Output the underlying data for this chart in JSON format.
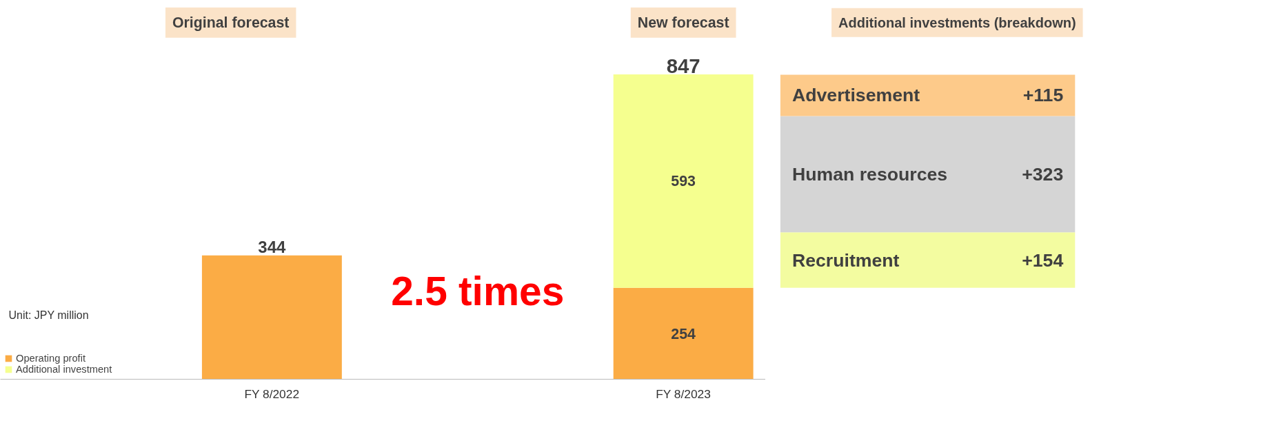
{
  "chart_data": [
    {
      "type": "bar",
      "stacked": true,
      "categories": [
        "FY 8/2022",
        "FY 8/2023"
      ],
      "series": [
        {
          "name": "Operating profit",
          "color": "#fbac45",
          "values": [
            344,
            254
          ]
        },
        {
          "name": "Additional investment",
          "color": "#f5ff8f",
          "values": [
            null,
            593
          ]
        }
      ],
      "data_labels": true,
      "totals": [
        null,
        "847"
      ],
      "legend": "bottom left",
      "annotations": [
        "Original forecast",
        "New forecast",
        "Unit: JPY million",
        "2.5 times"
      ]
    },
    {
      "type": "bar",
      "stacked": true,
      "title": "Additional investments (breakdown)",
      "categories": [
        null
      ],
      "series": [
        {
          "name": "Recruitment",
          "color": "#f3fca0",
          "values": [
            154
          ],
          "value_labels": [
            "+154"
          ]
        },
        {
          "name": "Human resources",
          "color": "#d5d5d5",
          "values": [
            323
          ],
          "value_labels": [
            "+323"
          ]
        },
        {
          "name": "Advertisement",
          "color": "#fdca8a",
          "values": [
            115
          ],
          "value_labels": [
            "+115"
          ]
        }
      ],
      "tick_labels": false,
      "legend": false
    }
  ]
}
